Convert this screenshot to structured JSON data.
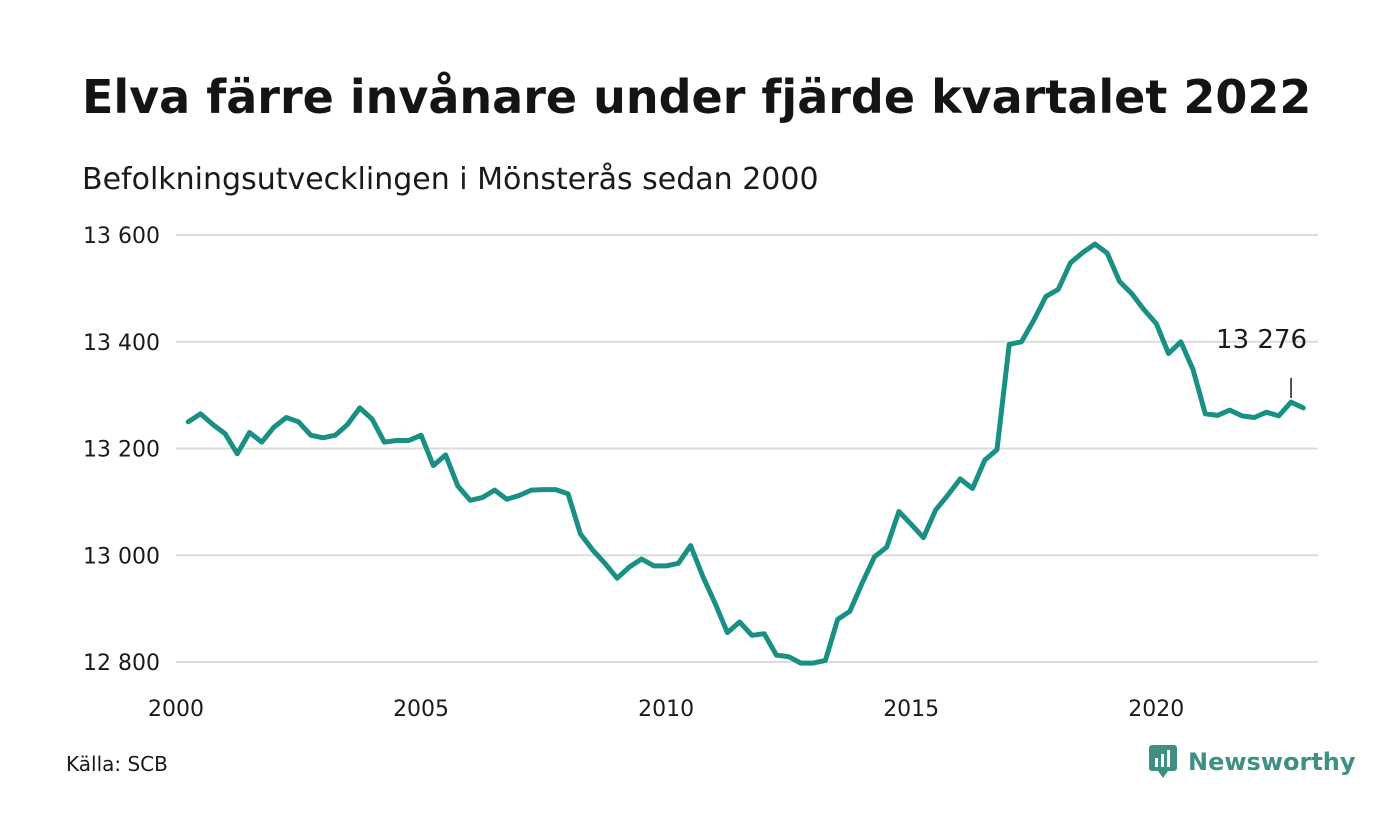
{
  "title": "Elva färre invånare under fjärde kvartalet 2022",
  "subtitle": "Befolkningsutvecklingen i Mönsterås sedan 2000",
  "source": "Källa: SCB",
  "brand": {
    "name": "Newsworthy",
    "icon": "newsworthy-logo-icon",
    "color": "#3f8f85"
  },
  "colors": {
    "line": "#1a9084",
    "grid": "#dcdcdc"
  },
  "chart_data": {
    "type": "line",
    "title": "Elva färre invånare under fjärde kvartalet 2022",
    "subtitle": "Befolkningsutvecklingen i Mönsterås sedan 2000",
    "xlabel": "",
    "ylabel": "",
    "xlim": [
      2000.0,
      2023.3
    ],
    "ylim": [
      12800,
      13600
    ],
    "x_ticks": [
      2000,
      2005,
      2010,
      2015,
      2020
    ],
    "x_tick_labels": [
      "2000",
      "2005",
      "2010",
      "2015",
      "2020"
    ],
    "y_ticks": [
      12800,
      13000,
      13200,
      13400,
      13600
    ],
    "y_tick_labels": [
      "12 800",
      "13 000",
      "13 200",
      "13 400",
      "13 600"
    ],
    "grid": "horizontal",
    "annotation": {
      "label": "13 276",
      "x": 2022.75,
      "y": 13276
    },
    "series": [
      {
        "x": [
          2000.25,
          2000.5,
          2000.75,
          2001.0,
          2001.25,
          2001.5,
          2001.75,
          2002.0,
          2002.25,
          2002.5,
          2002.75,
          2003.0,
          2003.25,
          2003.5,
          2003.75,
          2004.0,
          2004.25,
          2004.5,
          2004.75,
          2005.0,
          2005.25,
          2005.5,
          2005.75,
          2006.0,
          2006.25,
          2006.5,
          2006.75,
          2007.0,
          2007.25,
          2007.5,
          2007.75,
          2008.0,
          2008.25,
          2008.5,
          2008.75,
          2009.0,
          2009.25,
          2009.5,
          2009.75,
          2010.0,
          2010.25,
          2010.5,
          2010.75,
          2011.0,
          2011.25,
          2011.5,
          2011.75,
          2012.0,
          2012.25,
          2012.5,
          2012.75,
          2013.0,
          2013.25,
          2013.5,
          2013.75,
          2014.0,
          2014.25,
          2014.5,
          2014.75,
          2015.0,
          2015.25,
          2015.5,
          2015.75,
          2016.0,
          2016.25,
          2016.5,
          2016.75,
          2017.0,
          2017.25,
          2017.5,
          2017.75,
          2018.0,
          2018.25,
          2018.5,
          2018.75,
          2019.0,
          2019.25,
          2019.5,
          2019.75,
          2020.0,
          2020.25,
          2020.5,
          2020.75,
          2021.0,
          2021.25,
          2021.5,
          2021.75,
          2022.0,
          2022.25,
          2022.5,
          2022.75,
          2023.0
        ],
        "values": [
          13250,
          13265,
          13245,
          13228,
          13190,
          13230,
          13212,
          13240,
          13258,
          13250,
          13225,
          13220,
          13225,
          13245,
          13276,
          13255,
          13212,
          13215,
          13215,
          13225,
          13168,
          13188,
          13130,
          13103,
          13108,
          13122,
          13105,
          13112,
          13122,
          13123,
          13123,
          13115,
          13040,
          13010,
          12985,
          12957,
          12978,
          12993,
          12980,
          12980,
          12985,
          13018,
          12960,
          12910,
          12855,
          12875,
          12850,
          12853,
          12813,
          12810,
          12798,
          12798,
          12803,
          12880,
          12895,
          12948,
          12997,
          13015,
          13082,
          13058,
          13033,
          13085,
          13113,
          13143,
          13125,
          13178,
          13198,
          13395,
          13400,
          13440,
          13485,
          13498,
          13548,
          13567,
          13583,
          13566,
          13513,
          13490,
          13460,
          13434,
          13378,
          13400,
          13348,
          13265,
          13262,
          13272,
          13261,
          13258,
          13268,
          13261,
          13287,
          13276
        ]
      }
    ]
  }
}
